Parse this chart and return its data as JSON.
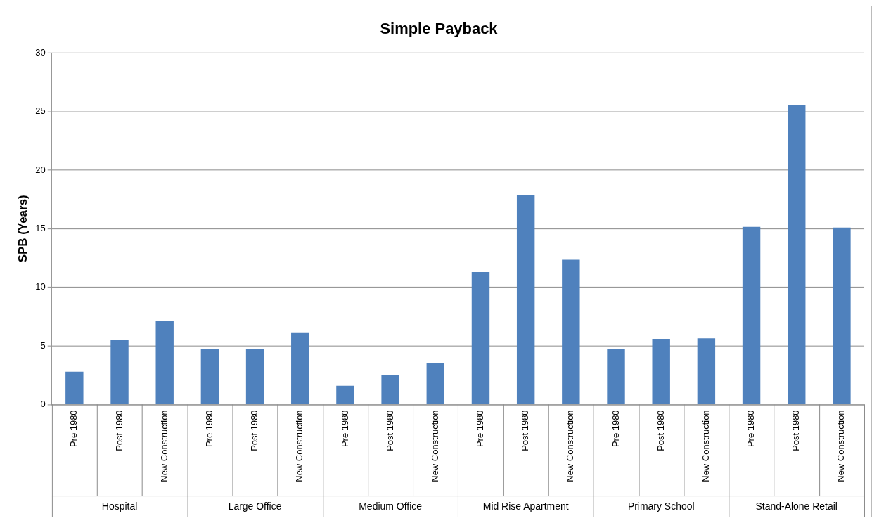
{
  "chart_data": {
    "type": "bar",
    "title": "Simple Payback",
    "ylabel": "SPB (Years)",
    "categories": [
      "Pre 1980",
      "Post 1980",
      "New Construction",
      "Pre 1980",
      "Post 1980",
      "New Construction",
      "Pre 1980",
      "Post 1980",
      "New Construction",
      "Pre 1980",
      "Post 1980",
      "New Construction",
      "Pre 1980",
      "Post 1980",
      "New Construction",
      "Pre 1980",
      "Post 1980",
      "New Construction"
    ],
    "values": [
      2.8,
      5.5,
      7.1,
      4.75,
      4.7,
      6.1,
      1.6,
      2.55,
      3.5,
      11.3,
      17.9,
      12.35,
      4.7,
      5.6,
      5.65,
      15.15,
      25.55,
      15.1
    ],
    "color": "#4f81bd",
    "annotations": [
      "Hospital",
      "Large Office",
      "Medium Office",
      "Mid Rise Apartment",
      "Primary School",
      "Stand-Alone Retail"
    ],
    "ylim": [
      0,
      30
    ],
    "yticks": [
      0,
      5,
      10,
      15,
      20,
      25,
      30
    ],
    "grid": "y",
    "legend": false
  }
}
